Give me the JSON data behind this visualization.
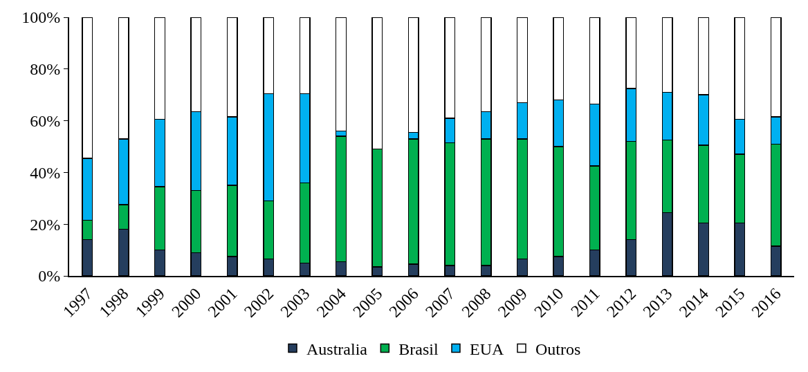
{
  "chart_data": {
    "type": "bar",
    "stacked": true,
    "categories": [
      "1997",
      "1998",
      "1999",
      "2000",
      "2001",
      "2002",
      "2003",
      "2004",
      "2005",
      "2006",
      "2007",
      "2008",
      "2009",
      "2010",
      "2011",
      "2012",
      "2013",
      "2014",
      "2015",
      "2016"
    ],
    "series": [
      {
        "name": "Australia",
        "color": "#253e5e",
        "values": [
          14,
          18,
          10,
          9,
          7.5,
          6.5,
          5,
          5.5,
          3.5,
          4.5,
          4,
          4,
          6.5,
          7.5,
          10,
          14,
          24.5,
          20.5,
          20.5,
          11.5
        ]
      },
      {
        "name": "Brasil",
        "color": "#00b050",
        "values": [
          7.5,
          9.5,
          24.5,
          24,
          27.5,
          22.5,
          31,
          48.5,
          45.5,
          48.5,
          47.5,
          49,
          46.5,
          42.5,
          32.5,
          38,
          28,
          30,
          26.5,
          39.5
        ]
      },
      {
        "name": "EUA",
        "color": "#00b0f0",
        "values": [
          24,
          25.5,
          26,
          30.5,
          26.5,
          41.5,
          34.5,
          2,
          0,
          2.5,
          9.5,
          10.5,
          14,
          18,
          24,
          20.5,
          18.5,
          19.5,
          13.5,
          10.5
        ]
      },
      {
        "name": "Outros",
        "color": "#ffffff",
        "values": [
          54.5,
          47,
          39.5,
          36.5,
          38.5,
          29.5,
          29.5,
          44,
          51,
          44.5,
          39,
          36.5,
          33,
          32,
          33.5,
          27.5,
          29,
          30,
          39.5,
          38.5
        ]
      }
    ],
    "ylim": [
      0,
      100
    ],
    "yticks": [
      {
        "value": 0,
        "label": "0%"
      },
      {
        "value": 20,
        "label": "20%"
      },
      {
        "value": 40,
        "label": "40%"
      },
      {
        "value": 60,
        "label": "60%"
      },
      {
        "value": 80,
        "label": "80%"
      },
      {
        "value": 100,
        "label": "100%"
      }
    ],
    "legend": "bottom"
  }
}
